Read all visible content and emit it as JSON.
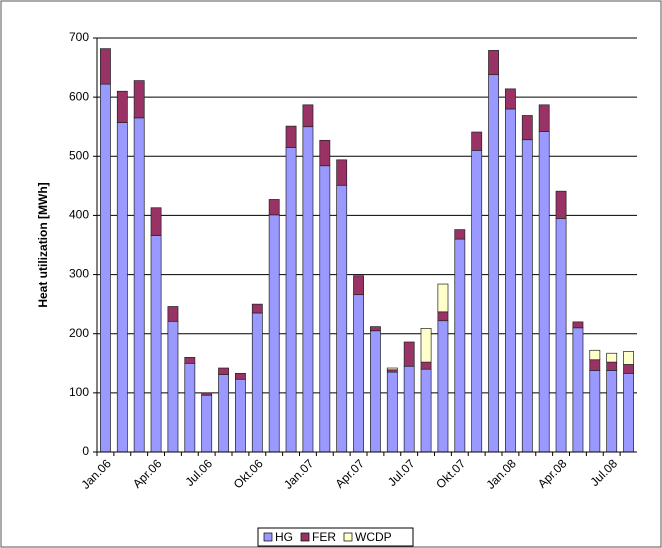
{
  "chart_data": {
    "type": "stacked_bar",
    "y_label": "Heat utilization [MWh]",
    "categories": [
      "Jan.06",
      null,
      null,
      "Apr.06",
      null,
      null,
      "Jul.06",
      null,
      null,
      "Okt.06",
      null,
      null,
      "Jan.07",
      null,
      null,
      "Apr.07",
      null,
      null,
      "Jul.07",
      null,
      null,
      "Okt.07",
      null,
      null,
      "Jan.08",
      null,
      null,
      "Apr.08",
      null,
      null,
      "Jul.08",
      null
    ],
    "series": [
      {
        "name": "HG",
        "color": "#9999ff",
        "values": [
          622,
          557,
          565,
          366,
          221,
          150,
          96,
          131,
          123,
          235,
          401,
          515,
          550,
          484,
          451,
          266,
          205,
          135,
          145,
          140,
          222,
          360,
          510,
          638,
          580,
          528,
          542,
          395,
          210,
          138,
          138,
          133
        ]
      },
      {
        "name": "FER",
        "color": "#993366",
        "values": [
          60,
          53,
          63,
          47,
          25,
          10,
          4,
          11,
          10,
          15,
          26,
          36,
          37,
          43,
          43,
          32,
          7,
          4,
          41,
          12,
          15,
          16,
          31,
          41,
          34,
          41,
          45,
          46,
          10,
          18,
          14,
          15
        ]
      },
      {
        "name": "WCDP",
        "color": "#ffffcc",
        "values": [
          0,
          0,
          0,
          0,
          0,
          0,
          0,
          0,
          0,
          0,
          0,
          0,
          0,
          0,
          0,
          0,
          0,
          3,
          0,
          57,
          47,
          0,
          0,
          0,
          0,
          0,
          0,
          0,
          0,
          16,
          15,
          22
        ]
      }
    ],
    "ylim": [
      0,
      700
    ],
    "yticks": [
      0,
      100,
      200,
      300,
      400,
      500,
      600,
      700
    ],
    "grid": true,
    "legend": "bottom"
  }
}
